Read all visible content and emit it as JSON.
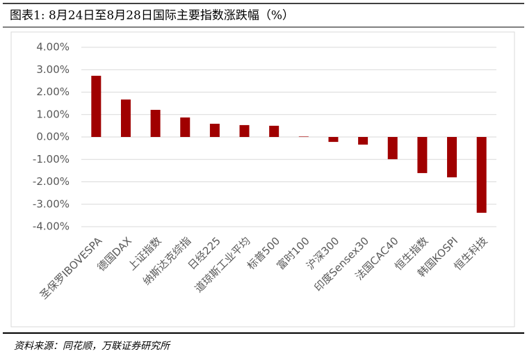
{
  "chart_data": {
    "type": "bar",
    "title": "图表1:  8月24日至8月28日国际主要指数涨跌幅（%）",
    "source": "资料来源：同花顺，万联证券研究所",
    "categories": [
      "圣保罗IBOVESPA",
      "德国DAX",
      "上证指数",
      "纳斯达克综指",
      "日经225",
      "道琼斯工业平均",
      "标普500",
      "富时100",
      "沪深300",
      "印度Sensex30",
      "法国CAC40",
      "恒生指数",
      "韩国KOSPI",
      "恒生科技"
    ],
    "values": [
      2.73,
      1.67,
      1.21,
      0.87,
      0.59,
      0.53,
      0.5,
      0.02,
      -0.22,
      -0.34,
      -0.99,
      -1.61,
      -1.8,
      -3.38
    ],
    "color": "#a00000",
    "ylim": [
      -4,
      4
    ],
    "yticks": [
      {
        "value": -4,
        "label": "-4.00%"
      },
      {
        "value": -3,
        "label": "-3.00%"
      },
      {
        "value": -2,
        "label": "-2.00%"
      },
      {
        "value": -1,
        "label": "-1.00%"
      },
      {
        "value": 0,
        "label": "0.00%"
      },
      {
        "value": 1,
        "label": "1.00%"
      },
      {
        "value": 2,
        "label": "2.00%"
      },
      {
        "value": 3,
        "label": "3.00%"
      },
      {
        "value": 4,
        "label": "4.00%"
      }
    ],
    "grid": true
  }
}
